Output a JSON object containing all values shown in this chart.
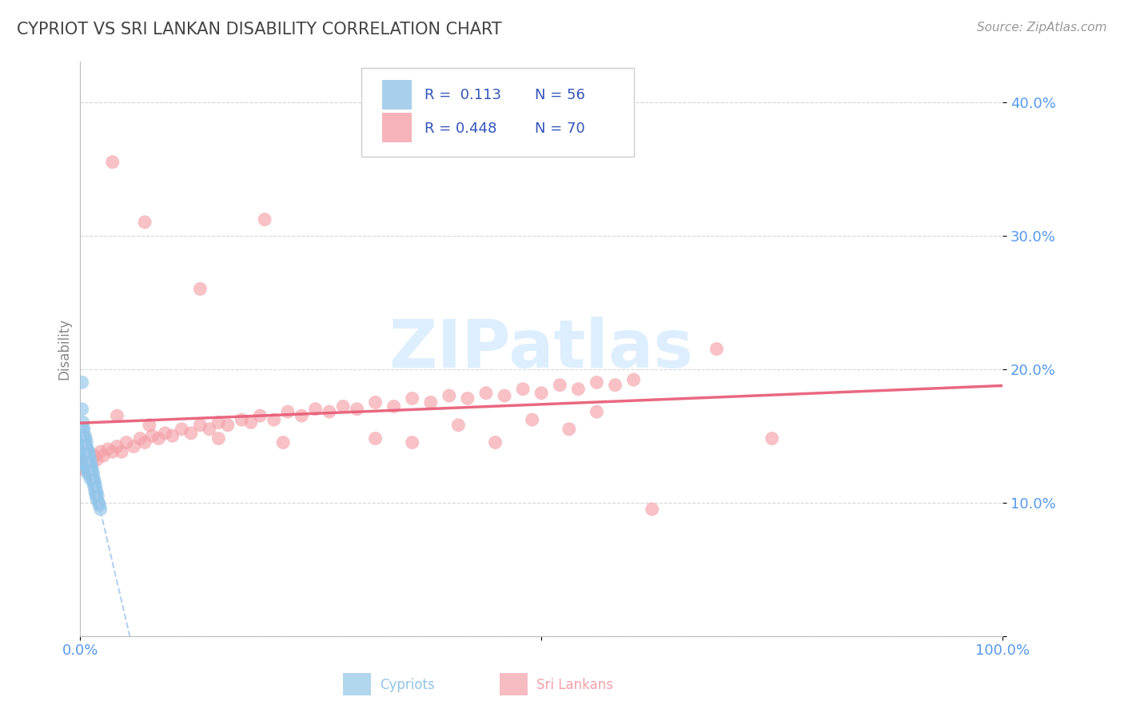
{
  "title": "CYPRIOT VS SRI LANKAN DISABILITY CORRELATION CHART",
  "source": "Source: ZipAtlas.com",
  "ylabel": "Disability",
  "yticks": [
    0.0,
    0.1,
    0.2,
    0.3,
    0.4
  ],
  "ytick_labels": [
    "",
    "10.0%",
    "20.0%",
    "30.0%",
    "40.0%"
  ],
  "xlim": [
    0.0,
    1.0
  ],
  "ylim": [
    0.0,
    0.43
  ],
  "cypriot_R": 0.113,
  "cypriot_N": 56,
  "srilankan_R": 0.448,
  "srilankan_N": 70,
  "cypriot_color": "#92C5E8",
  "srilankan_color": "#F4A0A8",
  "cypriot_line_color": "#7AADD4",
  "srilankan_line_color": "#E8607A",
  "background_color": "#FFFFFF",
  "grid_color": "#CCCCCC",
  "title_color": "#444444",
  "axis_label_color": "#5599EE",
  "watermark_color": "#DDEEFF",
  "legend_color": "#3355BB",
  "cypriot_x": [
    0.002,
    0.002,
    0.002,
    0.003,
    0.003,
    0.003,
    0.003,
    0.003,
    0.004,
    0.004,
    0.004,
    0.004,
    0.005,
    0.005,
    0.005,
    0.005,
    0.006,
    0.006,
    0.006,
    0.006,
    0.007,
    0.007,
    0.007,
    0.007,
    0.007,
    0.008,
    0.008,
    0.008,
    0.008,
    0.009,
    0.009,
    0.009,
    0.01,
    0.01,
    0.01,
    0.011,
    0.011,
    0.011,
    0.012,
    0.012,
    0.013,
    0.013,
    0.014,
    0.014,
    0.015,
    0.015,
    0.016,
    0.016,
    0.017,
    0.017,
    0.018,
    0.018,
    0.019,
    0.02,
    0.021,
    0.022
  ],
  "cypriot_y": [
    0.19,
    0.17,
    0.145,
    0.16,
    0.155,
    0.15,
    0.145,
    0.13,
    0.155,
    0.148,
    0.142,
    0.135,
    0.15,
    0.145,
    0.135,
    0.128,
    0.148,
    0.142,
    0.136,
    0.128,
    0.145,
    0.14,
    0.135,
    0.13,
    0.125,
    0.14,
    0.135,
    0.128,
    0.122,
    0.138,
    0.132,
    0.125,
    0.135,
    0.13,
    0.122,
    0.132,
    0.126,
    0.118,
    0.128,
    0.122,
    0.125,
    0.118,
    0.122,
    0.115,
    0.118,
    0.112,
    0.115,
    0.108,
    0.112,
    0.105,
    0.108,
    0.102,
    0.105,
    0.1,
    0.098,
    0.095
  ],
  "srilankan_x": [
    0.003,
    0.005,
    0.008,
    0.01,
    0.012,
    0.015,
    0.018,
    0.022,
    0.025,
    0.03,
    0.035,
    0.04,
    0.045,
    0.05,
    0.058,
    0.065,
    0.07,
    0.078,
    0.085,
    0.092,
    0.1,
    0.11,
    0.12,
    0.13,
    0.14,
    0.15,
    0.16,
    0.175,
    0.185,
    0.195,
    0.21,
    0.225,
    0.24,
    0.255,
    0.27,
    0.285,
    0.3,
    0.32,
    0.34,
    0.36,
    0.38,
    0.4,
    0.42,
    0.44,
    0.46,
    0.48,
    0.5,
    0.52,
    0.54,
    0.56,
    0.58,
    0.6,
    0.04,
    0.075,
    0.15,
    0.22,
    0.32,
    0.41,
    0.49,
    0.56,
    0.035,
    0.07,
    0.13,
    0.2,
    0.36,
    0.45,
    0.53,
    0.62,
    0.69,
    0.75
  ],
  "srilankan_y": [
    0.125,
    0.13,
    0.128,
    0.132,
    0.13,
    0.135,
    0.132,
    0.138,
    0.135,
    0.14,
    0.138,
    0.142,
    0.138,
    0.145,
    0.142,
    0.148,
    0.145,
    0.15,
    0.148,
    0.152,
    0.15,
    0.155,
    0.152,
    0.158,
    0.155,
    0.16,
    0.158,
    0.162,
    0.16,
    0.165,
    0.162,
    0.168,
    0.165,
    0.17,
    0.168,
    0.172,
    0.17,
    0.175,
    0.172,
    0.178,
    0.175,
    0.18,
    0.178,
    0.182,
    0.18,
    0.185,
    0.182,
    0.188,
    0.185,
    0.19,
    0.188,
    0.192,
    0.165,
    0.158,
    0.148,
    0.145,
    0.148,
    0.158,
    0.162,
    0.168,
    0.355,
    0.31,
    0.26,
    0.312,
    0.145,
    0.145,
    0.155,
    0.095,
    0.215,
    0.148
  ]
}
